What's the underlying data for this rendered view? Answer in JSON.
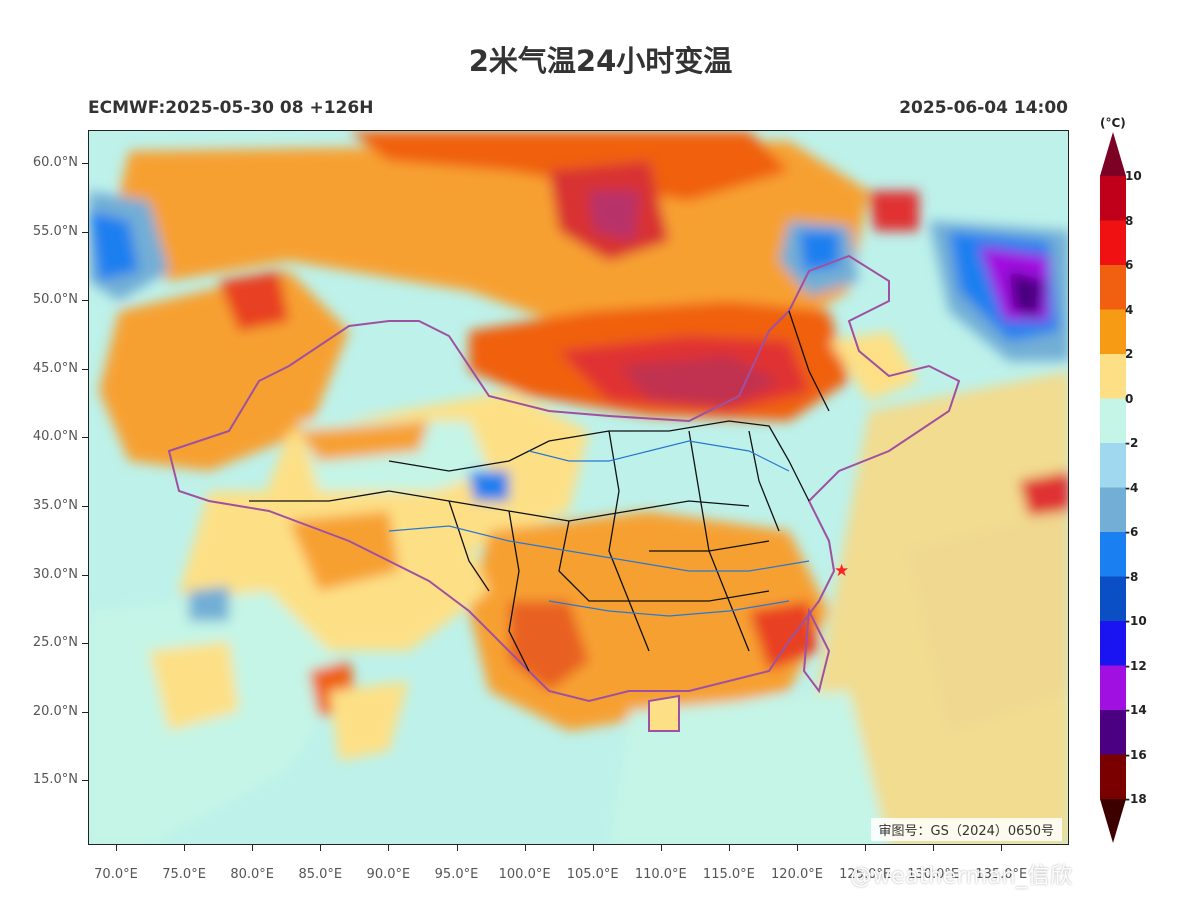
{
  "title": "2米气温24小时变温",
  "subtitle_left": "ECMWF:2025-05-30 08 +126H",
  "subtitle_right": "2025-06-04 14:00",
  "map": {
    "lat_labels": [
      "60.0°N",
      "55.0°N",
      "50.0°N",
      "45.0°N",
      "40.0°N",
      "35.0°N",
      "30.0°N",
      "25.0°N",
      "20.0°N",
      "15.0°N"
    ],
    "lon_labels": [
      "70.0°E",
      "75.0°E",
      "80.0°E",
      "85.0°E",
      "90.0°E",
      "95.0°E",
      "100.0°E",
      "105.0°E",
      "110.0°E",
      "115.0°E",
      "120.0°E",
      "125.0°E",
      "130.0°E",
      "135.0°E"
    ],
    "review_number": "审图号：GS（2024）0650号",
    "marker_icon": "star-marker-icon"
  },
  "colorbar": {
    "unit": "(°C)",
    "labels": [
      "10",
      "8",
      "6",
      "4",
      "2",
      "0",
      "-2",
      "-4",
      "-6",
      "-8",
      "-10",
      "-12",
      "-14",
      "-16",
      "-18"
    ],
    "colors": [
      "#7d0025",
      "#c0001a",
      "#f01212",
      "#f06010",
      "#f79a14",
      "#fde086",
      "#c4f5e6",
      "#a0d8f0",
      "#72aed6",
      "#1a7ff0",
      "#0a4fc4",
      "#1a14f0",
      "#a010e0",
      "#4a0080",
      "#7a0000",
      "#3c0000"
    ]
  },
  "watermark": "@weatherman_信欣"
}
